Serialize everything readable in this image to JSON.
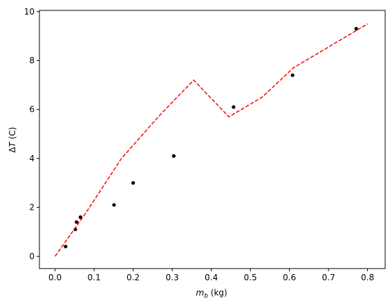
{
  "chart_data": {
    "type": "scatter",
    "title": "",
    "xlabel": {
      "symbol": "m",
      "subscript": "b",
      "unit": " (kg)"
    },
    "ylabel": {
      "prefix": "Δ",
      "symbol": "T",
      "unit": " (C)"
    },
    "xlim": [
      -0.04,
      0.845
    ],
    "ylim": [
      -0.5,
      10.05
    ],
    "x_ticks": [
      0.0,
      0.1,
      0.2,
      0.3,
      0.4,
      0.5,
      0.6,
      0.7,
      0.8
    ],
    "x_tick_labels": [
      "0.0",
      "0.1",
      "0.2",
      "0.3",
      "0.4",
      "0.5",
      "0.6",
      "0.7",
      "0.8"
    ],
    "y_ticks": [
      0,
      2,
      4,
      6,
      8,
      10
    ],
    "y_tick_labels": [
      "0",
      "2",
      "4",
      "6",
      "8",
      "10"
    ],
    "grid": false,
    "legend": "none",
    "series": [
      {
        "type": "scatter",
        "color": "#000000",
        "marker": "circle",
        "x": [
          0.027,
          0.052,
          0.055,
          0.065,
          0.151,
          0.2,
          0.304,
          0.457,
          0.608,
          0.771
        ],
        "y": [
          0.4,
          1.1,
          1.4,
          1.6,
          2.1,
          3.0,
          4.1,
          6.1,
          7.4,
          9.3
        ]
      },
      {
        "type": "line",
        "color": "#ff0000",
        "linestyle": "dashed",
        "x": [
          0.0,
          0.08,
          0.17,
          0.27,
          0.355,
          0.445,
          0.53,
          0.61,
          0.8
        ],
        "y": [
          0.0,
          1.8,
          4.0,
          5.8,
          7.2,
          5.7,
          6.5,
          7.7,
          9.5
        ]
      }
    ]
  }
}
